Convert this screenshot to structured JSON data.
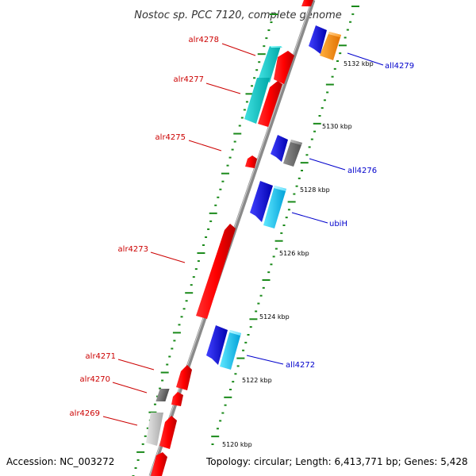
{
  "title": "Nostoc sp. PCC 7120, complete genome",
  "footer": {
    "accession": "Accession: NC_003272",
    "topology": "Topology: circular; Length: 6,413,771 bp; Genes: 5,428"
  },
  "colors": {
    "forward_label": "#cc0000",
    "reverse_label": "#0000cc",
    "backbone": "#8a8a8a",
    "tick_dots": "#1a8a1a"
  },
  "tick_labels": [
    "5132 kbp",
    "5130 kbp",
    "5128 kbp",
    "5126 kbp",
    "5124 kbp",
    "5122 kbp",
    "5120 kbp"
  ],
  "genes_forward": [
    {
      "name": "alr4278"
    },
    {
      "name": "alr4277"
    },
    {
      "name": "alr4275"
    },
    {
      "name": "alr4273"
    },
    {
      "name": "alr4271"
    },
    {
      "name": "alr4270"
    },
    {
      "name": "alr4269"
    }
  ],
  "genes_reverse": [
    {
      "name": "all4279"
    },
    {
      "name": "all4276"
    },
    {
      "name": "ubiH"
    },
    {
      "name": "all4272"
    }
  ]
}
